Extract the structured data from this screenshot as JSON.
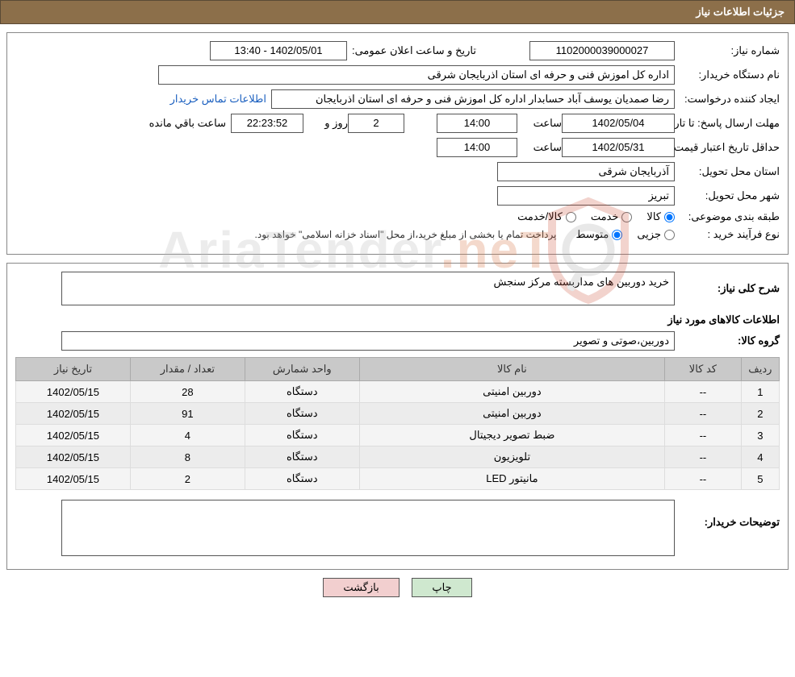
{
  "header": {
    "title": "جزئیات اطلاعات نیاز"
  },
  "labels": {
    "need_no": "شماره نیاز:",
    "announce_dt": "تاریخ و ساعت اعلان عمومی:",
    "buyer_org": "نام دستگاه خریدار:",
    "requester": "ایجاد کننده درخواست:",
    "contact_link": "اطلاعات تماس خریدار",
    "answer_deadline": "مهلت ارسال پاسخ:",
    "to_date": "تا تاریخ:",
    "hour": "ساعت",
    "days_and": "روز و",
    "remaining": "ساعت باقي مانده",
    "price_validity": "حداقل تاریخ اعتبار قیمت:",
    "province": "استان محل تحویل:",
    "city": "شهر محل تحویل:",
    "subject_class": "طبقه بندی موضوعی:",
    "purchase_type": "نوع فرآیند خرید :",
    "radio_goods": "کالا",
    "radio_service": "خدمت",
    "radio_goods_service": "کالا/خدمت",
    "radio_partial": "جزیی",
    "radio_medium": "متوسط",
    "payment_note": "پرداخت تمام یا بخشی از مبلغ خرید،از محل \"اسناد خزانه اسلامی\" خواهد بود.",
    "need_desc": "شرح کلی نیاز:",
    "items_info": "اطلاعات کالاهای مورد نیاز",
    "goods_group": "گروه کالا:",
    "buyer_notes": "توضیحات خریدار:"
  },
  "values": {
    "need_no": "1102000039000027",
    "announce_dt": "1402/05/01 - 13:40",
    "buyer_org": "اداره کل اموزش فنی و حرفه ای استان اذربایجان شرقی",
    "requester": "رضا صمدیان یوسف آباد حسابدار اداره کل اموزش فنی و حرفه ای استان اذربایجان",
    "answer_date": "1402/05/04",
    "answer_time": "14:00",
    "days": "2",
    "hms": "22:23:52",
    "price_date": "1402/05/31",
    "price_time": "14:00",
    "province": "آذربایجان شرقی",
    "city": "تبریز",
    "need_desc": "خرید دوربین های مداربسته مرکز سنجش",
    "goods_group": "دوربین،صوتی و تصویر",
    "buyer_notes": ""
  },
  "radios": {
    "subject_selected": "goods",
    "purchase_selected": "medium"
  },
  "table": {
    "columns": [
      "ردیف",
      "کد کالا",
      "نام کالا",
      "واحد شمارش",
      "تعداد / مقدار",
      "تاریخ نیاز"
    ],
    "col_widths": [
      "5%",
      "10%",
      "40%",
      "15%",
      "15%",
      "15%"
    ],
    "rows": [
      [
        "1",
        "--",
        "دوربین امنیتی",
        "دستگاه",
        "28",
        "1402/05/15"
      ],
      [
        "2",
        "--",
        "دوربین امنیتی",
        "دستگاه",
        "91",
        "1402/05/15"
      ],
      [
        "3",
        "--",
        "ضبط تصویر دیجیتال",
        "دستگاه",
        "4",
        "1402/05/15"
      ],
      [
        "4",
        "--",
        "تلویزیون",
        "دستگاه",
        "8",
        "1402/05/15"
      ],
      [
        "5",
        "--",
        "مانیتور LED",
        "دستگاه",
        "2",
        "1402/05/15"
      ]
    ]
  },
  "buttons": {
    "print": "چاپ",
    "back": "بازگشت"
  },
  "watermark": {
    "text_main": "AriaTender",
    "text_accent": ".neT"
  },
  "colors": {
    "header_bg": "#8c6f4a",
    "header_text": "#ffffff",
    "border": "#555555",
    "link": "#1a5fbf",
    "th_bg": "#c9c9c9",
    "row_bg": "#f4f4f4",
    "row_alt_bg": "#ececec",
    "btn_print_bg": "#cfe8cf",
    "btn_back_bg": "#f2cfcf",
    "watermark_gray": "#bdbdbd",
    "watermark_accent": "#d97a4a",
    "shield_stroke": "#c94f3a"
  }
}
